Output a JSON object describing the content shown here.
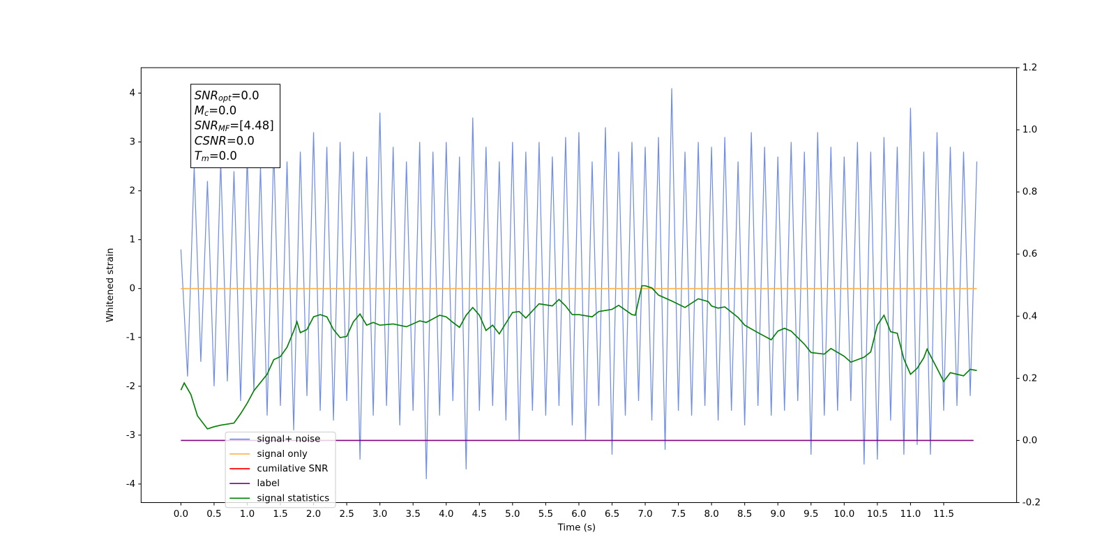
{
  "chart_data": {
    "type": "line",
    "xlabel": "Time (s)",
    "ylabel": "Whitened strain",
    "xlim": [
      -0.6,
      12.6
    ],
    "ylim": [
      -4.38,
      4.52
    ],
    "y2lim": [
      -0.2,
      1.2
    ],
    "xticks": [
      {
        "value": 0,
        "label": "0.0"
      },
      {
        "value": 0.5,
        "label": "0.5"
      },
      {
        "value": 1,
        "label": "1.0"
      },
      {
        "value": 1.5,
        "label": "1.5"
      },
      {
        "value": 2,
        "label": "2.0"
      },
      {
        "value": 2.5,
        "label": "2.5"
      },
      {
        "value": 3,
        "label": "3.0"
      },
      {
        "value": 3.5,
        "label": "3.5"
      },
      {
        "value": 4,
        "label": "4.0"
      },
      {
        "value": 4.5,
        "label": "4.5"
      },
      {
        "value": 5,
        "label": "5.0"
      },
      {
        "value": 5.5,
        "label": "5.5"
      },
      {
        "value": 6,
        "label": "6.0"
      },
      {
        "value": 6.5,
        "label": "6.5"
      },
      {
        "value": 7,
        "label": "7.0"
      },
      {
        "value": 7.5,
        "label": "7.5"
      },
      {
        "value": 8,
        "label": "8.0"
      },
      {
        "value": 8.5,
        "label": "8.5"
      },
      {
        "value": 9,
        "label": "9.0"
      },
      {
        "value": 9.5,
        "label": "9.5"
      },
      {
        "value": 10,
        "label": "10.0"
      },
      {
        "value": 10.5,
        "label": "10.5"
      },
      {
        "value": 11,
        "label": "11.0"
      },
      {
        "value": 11.5,
        "label": "11.5"
      }
    ],
    "yticks": [
      -4,
      -3,
      -2,
      -1,
      0,
      1,
      2,
      3,
      4
    ],
    "y2ticks": [
      -0.2,
      {
        "value": 0,
        "label": "0.0"
      },
      0.2,
      0.4,
      0.6,
      0.8,
      {
        "value": 1,
        "label": "1.0"
      },
      1.2
    ],
    "annotations": [
      {
        "base": "SNR",
        "sub": "opt",
        "rest": "=0.0"
      },
      {
        "base": "M",
        "sub": "c",
        "rest": "=0.0"
      },
      {
        "base": "SNR",
        "sub": "MF",
        "rest": "=[4.48]"
      },
      {
        "base": "CSNR",
        "rest": "=0.0"
      },
      {
        "base": "T",
        "sub": "m",
        "rest": "=0.0"
      }
    ],
    "legend": "lower left",
    "series": [
      {
        "name": "signal+ noise",
        "color": "#6f8de6",
        "x": [
          0,
          0.1,
          0.2,
          0.3,
          0.4,
          0.5,
          0.6,
          0.7,
          0.8,
          0.9,
          1,
          1.1,
          1.2,
          1.3,
          1.4,
          1.5,
          1.6,
          1.7,
          1.8,
          1.9,
          2,
          2.1,
          2.2,
          2.3,
          2.4,
          2.5,
          2.6,
          2.7,
          2.8,
          2.9,
          3,
          3.1,
          3.2,
          3.3,
          3.4,
          3.5,
          3.6,
          3.7,
          3.8,
          3.9,
          4,
          4.1,
          4.2,
          4.3,
          4.4,
          4.5,
          4.6,
          4.7,
          4.8,
          4.9,
          5,
          5.1,
          5.2,
          5.3,
          5.4,
          5.5,
          5.6,
          5.7,
          5.8,
          5.9,
          6,
          6.1,
          6.2,
          6.3,
          6.4,
          6.5,
          6.6,
          6.7,
          6.8,
          6.9,
          7,
          7.1,
          7.2,
          7.3,
          7.4,
          7.5,
          7.6,
          7.7,
          7.8,
          7.9,
          8,
          8.1,
          8.2,
          8.3,
          8.4,
          8.5,
          8.6,
          8.7,
          8.8,
          8.9,
          9,
          9.1,
          9.2,
          9.3,
          9.4,
          9.5,
          9.6,
          9.7,
          9.8,
          9.9,
          10,
          10.1,
          10.2,
          10.3,
          10.4,
          10.5,
          10.6,
          10.7,
          10.8,
          10.9,
          11,
          11.1,
          11.2,
          11.3,
          11.4,
          11.5,
          11.6,
          11.7,
          11.8,
          11.9,
          12
        ],
        "values": [
          0.8,
          -1.8,
          2.5,
          -1.5,
          2.2,
          -2.0,
          2.6,
          -1.9,
          2.4,
          -2.3,
          2.7,
          -2.1,
          2.5,
          -2.6,
          2.9,
          -2.4,
          2.6,
          -2.9,
          2.8,
          -2.2,
          3.2,
          -2.5,
          2.9,
          -2.7,
          3.0,
          -2.3,
          2.8,
          -3.5,
          2.7,
          -2.6,
          3.6,
          -2.4,
          2.9,
          -2.8,
          2.6,
          -2.5,
          3.0,
          -3.9,
          2.8,
          -2.6,
          3.0,
          -2.3,
          2.7,
          -3.7,
          3.5,
          -2.5,
          2.9,
          -2.4,
          2.6,
          -2.7,
          3.0,
          -3.1,
          2.8,
          -2.5,
          3.0,
          -2.6,
          2.7,
          -2.4,
          3.1,
          -2.8,
          3.2,
          -3.1,
          2.6,
          -2.4,
          3.3,
          -3.4,
          2.8,
          -2.6,
          3.0,
          -2.3,
          2.9,
          -2.7,
          3.1,
          -3.3,
          4.1,
          -2.5,
          2.8,
          -2.6,
          3.0,
          -2.4,
          2.9,
          -2.7,
          3.1,
          -2.5,
          2.6,
          -2.8,
          3.2,
          -2.4,
          2.9,
          -2.6,
          2.7,
          -2.5,
          3.0,
          -2.3,
          2.8,
          -3.4,
          3.2,
          -2.6,
          2.9,
          -2.5,
          2.7,
          -2.3,
          3.0,
          -3.6,
          2.8,
          -3.5,
          3.1,
          -2.7,
          2.9,
          -3.4,
          3.7,
          -3.2,
          2.8,
          -3.4,
          3.2,
          -2.5,
          2.9,
          -2.4,
          2.8,
          -2.2,
          2.6
        ]
      },
      {
        "name": "signal only",
        "color": "#ffb347",
        "x": [
          0,
          12
        ],
        "values": [
          0,
          0
        ]
      },
      {
        "name": "cumilative SNR",
        "color": "#ff0000"
      },
      {
        "name": "label",
        "color": "#800080",
        "axis": "y2",
        "x": [
          0,
          11.95
        ],
        "values": [
          0,
          0
        ]
      },
      {
        "name": "signal statistics",
        "color": "#008000",
        "axis": "y2",
        "x": [
          0,
          0.05,
          0.15,
          0.25,
          0.4,
          0.5,
          0.6,
          0.8,
          0.9,
          1,
          1.1,
          1.3,
          1.4,
          1.5,
          1.6,
          1.7,
          1.75,
          1.8,
          1.9,
          2,
          2.1,
          2.2,
          2.3,
          2.4,
          2.5,
          2.6,
          2.7,
          2.8,
          2.9,
          3,
          3.2,
          3.4,
          3.6,
          3.7,
          3.9,
          4,
          4.1,
          4.2,
          4.3,
          4.4,
          4.5,
          4.6,
          4.7,
          4.8,
          5,
          5.1,
          5.2,
          5.4,
          5.6,
          5.7,
          5.8,
          5.9,
          6,
          6.2,
          6.3,
          6.5,
          6.6,
          6.8,
          6.85,
          6.95,
          7,
          7.1,
          7.2,
          7.4,
          7.6,
          7.8,
          7.95,
          8,
          8.1,
          8.2,
          8.4,
          8.5,
          8.7,
          8.9,
          9,
          9.1,
          9.2,
          9.4,
          9.5,
          9.7,
          9.8,
          10,
          10.1,
          10.3,
          10.4,
          10.5,
          10.6,
          10.7,
          10.8,
          10.9,
          11,
          11.1,
          11.2,
          11.25,
          11.3,
          11.4,
          11.5,
          11.6,
          11.7,
          11.8,
          11.9,
          12
        ],
        "values": [
          0.162,
          0.185,
          0.148,
          0.079,
          0.037,
          0.044,
          0.049,
          0.056,
          0.086,
          0.12,
          0.16,
          0.213,
          0.26,
          0.27,
          0.3,
          0.352,
          0.382,
          0.347,
          0.357,
          0.398,
          0.405,
          0.398,
          0.357,
          0.331,
          0.335,
          0.382,
          0.407,
          0.371,
          0.38,
          0.371,
          0.375,
          0.366,
          0.385,
          0.38,
          0.403,
          0.398,
          0.38,
          0.364,
          0.403,
          0.428,
          0.403,
          0.354,
          0.371,
          0.343,
          0.412,
          0.415,
          0.394,
          0.44,
          0.433,
          0.454,
          0.433,
          0.405,
          0.405,
          0.398,
          0.415,
          0.422,
          0.435,
          0.405,
          0.403,
          0.498,
          0.498,
          0.491,
          0.468,
          0.449,
          0.428,
          0.456,
          0.447,
          0.433,
          0.426,
          0.43,
          0.396,
          0.371,
          0.347,
          0.324,
          0.352,
          0.361,
          0.352,
          0.31,
          0.283,
          0.278,
          0.296,
          0.271,
          0.252,
          0.268,
          0.285,
          0.371,
          0.403,
          0.35,
          0.345,
          0.262,
          0.213,
          0.232,
          0.266,
          0.294,
          0.273,
          0.232,
          0.19,
          0.218,
          0.213,
          0.208,
          0.229,
          0.225
        ]
      }
    ]
  }
}
